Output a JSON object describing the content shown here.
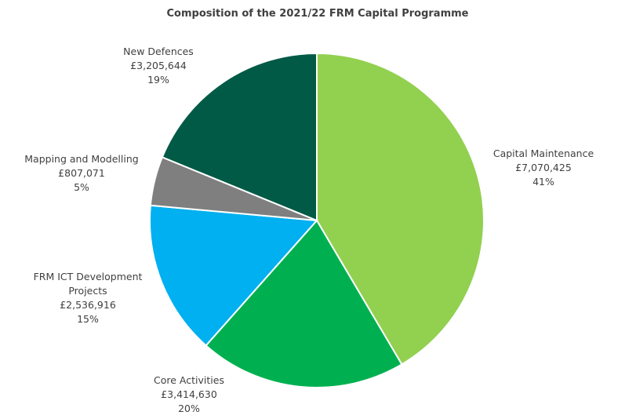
{
  "chart_data": {
    "type": "pie",
    "title": "Composition of the 2021/22 FRM Capital Programme",
    "start_angle_deg": 0,
    "direction": "clockwise",
    "slices": [
      {
        "key": "capital-maintenance",
        "label_lines": [
          "Capital Maintenance"
        ],
        "value": 7070425,
        "value_text": "£7,070,425",
        "percent": 41,
        "percent_text": "41%",
        "color": "#92d050"
      },
      {
        "key": "core-activities",
        "label_lines": [
          "Core Activities"
        ],
        "value": 3414630,
        "value_text": "£3,414,630",
        "percent": 20,
        "percent_text": "20%",
        "color": "#00b050"
      },
      {
        "key": "frm-ict-development-projects",
        "label_lines": [
          "FRM ICT Development",
          "Projects"
        ],
        "value": 2536916,
        "value_text": "£2,536,916",
        "percent": 15,
        "percent_text": "15%",
        "color": "#00b0f0"
      },
      {
        "key": "mapping-and-modelling",
        "label_lines": [
          "Mapping and Modelling"
        ],
        "value": 807071,
        "value_text": "£807,071",
        "percent": 5,
        "percent_text": "5%",
        "color": "#7f7f7f"
      },
      {
        "key": "new-defences",
        "label_lines": [
          "New Defences"
        ],
        "value": 3205644,
        "value_text": "£3,205,644",
        "percent": 19,
        "percent_text": "19%",
        "color": "#005a46"
      }
    ]
  }
}
